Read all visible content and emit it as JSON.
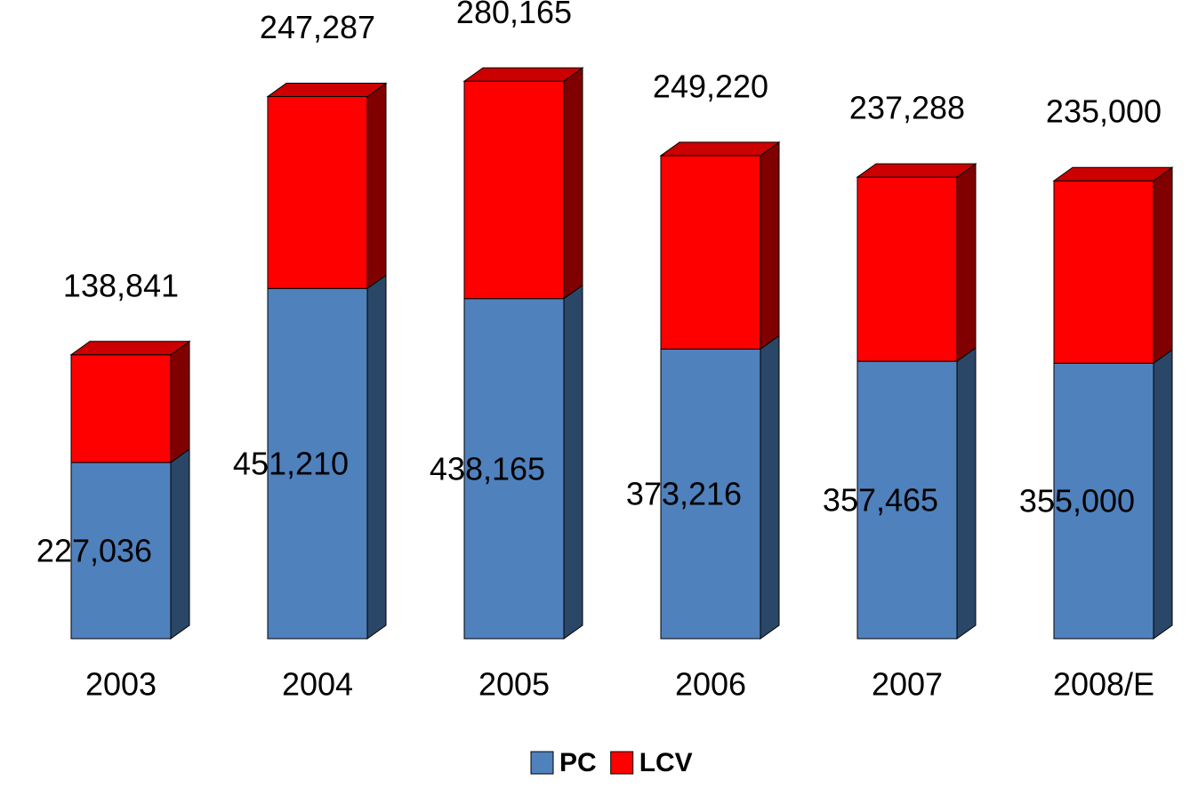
{
  "chart_data": {
    "type": "bar",
    "stacked": true,
    "categories": [
      "2003",
      "2004",
      "2005",
      "2006",
      "2007",
      "2008/E"
    ],
    "series": [
      {
        "name": "PC",
        "color": "#4f81bd",
        "values": [
          227036,
          451210,
          438165,
          373216,
          357465,
          355000
        ],
        "value_labels": [
          "227,036",
          "451,210",
          "438,165",
          "373,216",
          "357,465",
          "355,000"
        ]
      },
      {
        "name": "LCV",
        "color": "#ff0000",
        "values": [
          138841,
          247287,
          280165,
          249220,
          237288,
          235000
        ],
        "value_labels": [
          "138,841",
          "247,287",
          "280,165",
          "249,220",
          "237,288",
          "235,000"
        ]
      }
    ],
    "ylim": [
      0,
      800000
    ],
    "legend": "bottom"
  }
}
